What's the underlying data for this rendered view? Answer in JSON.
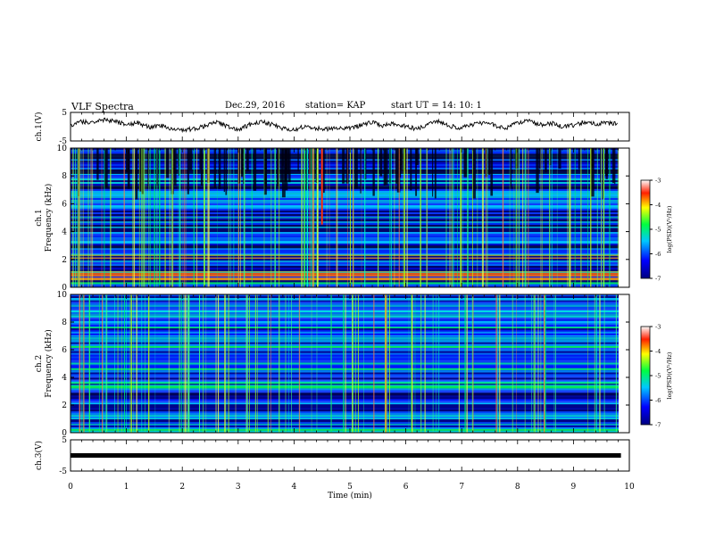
{
  "header": {
    "title": "VLF Spectra",
    "date": "Dec.29, 2016",
    "station": "station= KAP",
    "start": "start  UT =   14: 10: 1"
  },
  "chart_data": [
    {
      "type": "line",
      "title": "VLF Spectra",
      "ylabel": "ch.1(V)",
      "xlim": [
        0,
        10
      ],
      "ylim": [
        -5,
        5
      ],
      "yticks": [
        "-5",
        "5"
      ],
      "series": [
        {
          "x": [
            0,
            0.2,
            0.4,
            0.6,
            0.8,
            1.0,
            1.2,
            1.4,
            1.6,
            1.8,
            2.0,
            2.2,
            2.4,
            2.6,
            2.8,
            3.0,
            3.2,
            3.4,
            3.6,
            3.8,
            4.0,
            4.2,
            4.4,
            4.6,
            4.8,
            5.0,
            5.2,
            5.4,
            5.6,
            5.8,
            6.0,
            6.2,
            6.4,
            6.6,
            6.8,
            7.0,
            7.2,
            7.4,
            7.6,
            7.8,
            8.0,
            8.2,
            8.4,
            8.6,
            8.8,
            9.0,
            9.2,
            9.4,
            9.6,
            9.8
          ],
          "values": [
            0.5,
            1.8,
            1.2,
            2.4,
            2.0,
            0.6,
            1.4,
            -0.2,
            0.4,
            -0.6,
            -1.2,
            -0.8,
            0.3,
            1.6,
            0.2,
            -0.9,
            0.6,
            1.9,
            0.8,
            -0.6,
            -1.2,
            0.4,
            -0.5,
            -0.9,
            -0.2,
            -0.7,
            0.6,
            1.5,
            0.3,
            1.2,
            0.1,
            -0.8,
            0.9,
            1.7,
            0.2,
            -0.5,
            0.8,
            1.6,
            0.4,
            -0.4,
            1.2,
            2.1,
            0.6,
            1.3,
            -0.2,
            0.5,
            1.8,
            0.9,
            1.4,
            0.8
          ]
        }
      ]
    },
    {
      "type": "heatmap",
      "ylabel": "ch.1 Frequency (kHz)",
      "xlim": [
        0,
        10
      ],
      "ylim": [
        0,
        10
      ],
      "yticks": [
        "0",
        "2",
        "4",
        "6",
        "8",
        "10"
      ],
      "colorbar": {
        "label": "log(PSD)(V²/Hz)",
        "range": [
          -7,
          -3
        ],
        "ticks": [
          "-3",
          "-4",
          "-5",
          "-6",
          "-7"
        ]
      }
    },
    {
      "type": "heatmap",
      "ylabel": "ch.2 Frequency (kHz)",
      "xlim": [
        0,
        10
      ],
      "ylim": [
        0,
        10
      ],
      "yticks": [
        "0",
        "2",
        "4",
        "6",
        "8",
        "10"
      ],
      "colorbar": {
        "label": "log(PSD)(V²/Hz)",
        "range": [
          -7,
          -3
        ],
        "ticks": [
          "-3",
          "-4",
          "-5",
          "-6",
          "-7"
        ]
      }
    },
    {
      "type": "line",
      "ylabel": "ch.3(V)",
      "xlabel": "Time (min)",
      "xlim": [
        0,
        10
      ],
      "ylim": [
        -5,
        5
      ],
      "yticks": [
        "5",
        "-5"
      ],
      "xticks": [
        "0",
        "1",
        "2",
        "3",
        "4",
        "5",
        "6",
        "7",
        "8",
        "9",
        "10"
      ],
      "series": [
        {
          "x": [
            0,
            9.85
          ],
          "values": [
            0,
            0
          ]
        }
      ]
    }
  ]
}
